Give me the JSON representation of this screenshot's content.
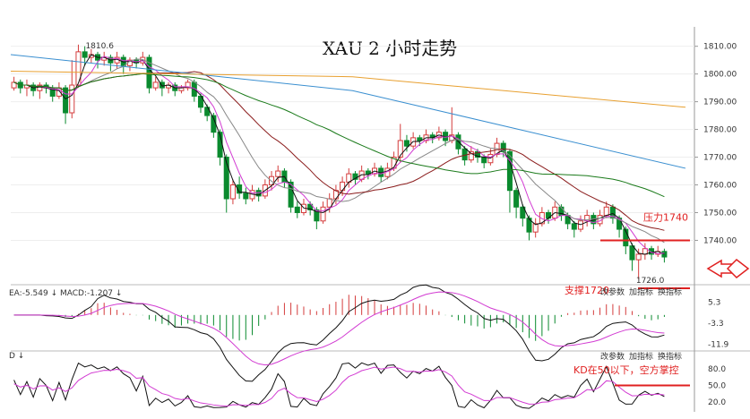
{
  "chart_data": {
    "type": "candlestick",
    "title": "XAU 2 小时走势",
    "main_panel": {
      "y_axis_ticks": [
        "1810.00",
        "1800.00",
        "1790.00",
        "1780.00",
        "1770.00",
        "1760.00",
        "1750.00",
        "1740.00"
      ],
      "ylim": [
        1724,
        1817
      ],
      "high_label": "1810.6",
      "low_label": "1726.0",
      "annotations": {
        "resistance": {
          "text": "压力1740",
          "price": 1740
        },
        "support": {
          "text": "支撑1720",
          "price": 1720
        }
      },
      "candles": [
        [
          1795,
          1797,
          1794,
          1799
        ],
        [
          1797,
          1795,
          1793,
          1798
        ],
        [
          1795,
          1796,
          1792,
          1798
        ],
        [
          1796,
          1794,
          1792,
          1797
        ],
        [
          1794,
          1796,
          1791,
          1797
        ],
        [
          1796,
          1795,
          1793,
          1797
        ],
        [
          1795,
          1792,
          1790,
          1796
        ],
        [
          1792,
          1795,
          1791,
          1797
        ],
        [
          1795,
          1786,
          1782,
          1796
        ],
        [
          1786,
          1796,
          1784,
          1805
        ],
        [
          1796,
          1808,
          1795,
          1810.6
        ],
        [
          1808,
          1806,
          1803,
          1810
        ],
        [
          1806,
          1807,
          1804,
          1809
        ],
        [
          1807,
          1805,
          1802,
          1808
        ],
        [
          1805,
          1806,
          1803,
          1808
        ],
        [
          1806,
          1804,
          1801,
          1807
        ],
        [
          1804,
          1806,
          1802,
          1808
        ],
        [
          1806,
          1803,
          1800,
          1807
        ],
        [
          1803,
          1805,
          1801,
          1806
        ],
        [
          1805,
          1804,
          1802,
          1806
        ],
        [
          1804,
          1806,
          1803,
          1808
        ],
        [
          1806,
          1795,
          1793,
          1807
        ],
        [
          1795,
          1797,
          1794,
          1799
        ],
        [
          1797,
          1795,
          1792,
          1798
        ],
        [
          1795,
          1796,
          1793,
          1797
        ],
        [
          1796,
          1794,
          1792,
          1797
        ],
        [
          1794,
          1795,
          1793,
          1796
        ],
        [
          1795,
          1797,
          1794,
          1798
        ],
        [
          1797,
          1792,
          1790,
          1798
        ],
        [
          1792,
          1788,
          1786,
          1793
        ],
        [
          1788,
          1785,
          1783,
          1789
        ],
        [
          1785,
          1779,
          1777,
          1786
        ],
        [
          1779,
          1770,
          1767,
          1780
        ],
        [
          1770,
          1755,
          1750,
          1771
        ],
        [
          1755,
          1760,
          1753,
          1762
        ],
        [
          1760,
          1757,
          1755,
          1763
        ],
        [
          1757,
          1755,
          1753,
          1759
        ],
        [
          1755,
          1758,
          1754,
          1760
        ],
        [
          1758,
          1756,
          1754,
          1759
        ],
        [
          1756,
          1760,
          1755,
          1762
        ],
        [
          1760,
          1763,
          1758,
          1765
        ],
        [
          1763,
          1765,
          1761,
          1767
        ],
        [
          1765,
          1761,
          1759,
          1766
        ],
        [
          1761,
          1752,
          1750,
          1762
        ],
        [
          1752,
          1750,
          1748,
          1754
        ],
        [
          1750,
          1753,
          1749,
          1755
        ],
        [
          1753,
          1751,
          1749,
          1754
        ],
        [
          1751,
          1747,
          1744,
          1752
        ],
        [
          1747,
          1752,
          1746,
          1754
        ],
        [
          1752,
          1755,
          1750,
          1757
        ],
        [
          1755,
          1758,
          1753,
          1760
        ],
        [
          1758,
          1761,
          1756,
          1763
        ],
        [
          1761,
          1764,
          1759,
          1766
        ],
        [
          1764,
          1762,
          1760,
          1765
        ],
        [
          1762,
          1765,
          1761,
          1767
        ],
        [
          1765,
          1764,
          1762,
          1766
        ],
        [
          1764,
          1766,
          1763,
          1768
        ],
        [
          1766,
          1763,
          1761,
          1767
        ],
        [
          1763,
          1766,
          1762,
          1768
        ],
        [
          1766,
          1770,
          1765,
          1772
        ],
        [
          1770,
          1776,
          1768,
          1782
        ],
        [
          1776,
          1774,
          1772,
          1778
        ],
        [
          1774,
          1777,
          1773,
          1779
        ],
        [
          1777,
          1776,
          1774,
          1778
        ],
        [
          1776,
          1778,
          1775,
          1780
        ],
        [
          1778,
          1777,
          1775,
          1779
        ],
        [
          1777,
          1779,
          1776,
          1781
        ],
        [
          1779,
          1776,
          1774,
          1780
        ],
        [
          1776,
          1778,
          1775,
          1788
        ],
        [
          1778,
          1773,
          1771,
          1779
        ],
        [
          1773,
          1769,
          1767,
          1774
        ],
        [
          1769,
          1772,
          1768,
          1774
        ],
        [
          1772,
          1770,
          1768,
          1773
        ],
        [
          1770,
          1768,
          1766,
          1771
        ],
        [
          1768,
          1771,
          1767,
          1773
        ],
        [
          1771,
          1775,
          1770,
          1777
        ],
        [
          1775,
          1772,
          1770,
          1776
        ],
        [
          1772,
          1758,
          1750,
          1773
        ],
        [
          1758,
          1752,
          1748,
          1759
        ],
        [
          1752,
          1748,
          1745,
          1753
        ],
        [
          1748,
          1743,
          1740,
          1749
        ],
        [
          1743,
          1746,
          1741,
          1748
        ],
        [
          1746,
          1750,
          1745,
          1752
        ],
        [
          1750,
          1748,
          1746,
          1751
        ],
        [
          1748,
          1752,
          1747,
          1754
        ],
        [
          1752,
          1749,
          1747,
          1753
        ],
        [
          1749,
          1746,
          1744,
          1750
        ],
        [
          1746,
          1744,
          1741,
          1747
        ],
        [
          1744,
          1747,
          1743,
          1749
        ],
        [
          1747,
          1749,
          1745,
          1751
        ],
        [
          1749,
          1746,
          1744,
          1750
        ],
        [
          1746,
          1749,
          1745,
          1751
        ],
        [
          1749,
          1752,
          1748,
          1754
        ],
        [
          1752,
          1748,
          1746,
          1753
        ],
        [
          1748,
          1744,
          1741,
          1749
        ],
        [
          1744,
          1738,
          1735,
          1745
        ],
        [
          1738,
          1733,
          1729,
          1739
        ],
        [
          1733,
          1735,
          1726,
          1737
        ],
        [
          1735,
          1737,
          1733,
          1739
        ],
        [
          1737,
          1735,
          1733,
          1738
        ],
        [
          1735,
          1736,
          1734,
          1738
        ],
        [
          1736,
          1734,
          1732,
          1737
        ]
      ]
    },
    "macd_panel": {
      "label": "EA:-5.549 ↓ MACD:-1.207 ↓",
      "y_axis_ticks": [
        "5.3",
        "-3.3",
        "-11.9"
      ],
      "ylim": [
        -14,
        8
      ]
    },
    "kd_panel": {
      "label": "D ↓",
      "y_axis_ticks": [
        "80.0",
        "50.0",
        "20.0"
      ],
      "ylim": [
        5,
        100
      ],
      "annotation": {
        "text": "KD在50以下，空方掌控",
        "level": 50
      }
    },
    "toolbar_labels": [
      "改参数",
      "加指标",
      "换指标"
    ]
  }
}
